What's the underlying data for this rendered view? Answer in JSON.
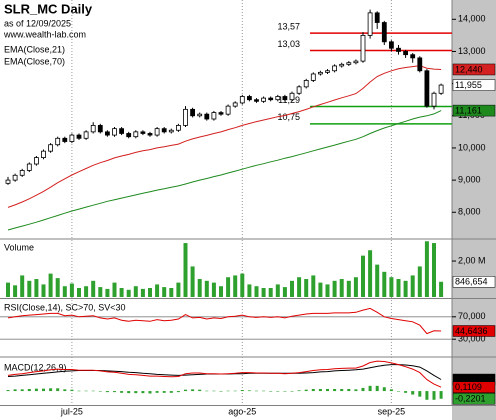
{
  "chart_data": [
    {
      "type": "candlestick",
      "title": "SLR_MC Daily",
      "subtitle": "as of 12/09/2025",
      "source": "www.wealth-lab.com",
      "categories": [
        null,
        null,
        null,
        null,
        null,
        null,
        null,
        null,
        null,
        "jul-25",
        null,
        null,
        null,
        null,
        null,
        null,
        null,
        null,
        null,
        null,
        null,
        null,
        null,
        null,
        null,
        null,
        null,
        null,
        null,
        null,
        null,
        null,
        null,
        "ago-25",
        null,
        null,
        null,
        null,
        null,
        null,
        null,
        null,
        null,
        null,
        null,
        null,
        null,
        null,
        null,
        null,
        null,
        null,
        null,
        null,
        "sep-25",
        null,
        null,
        null,
        null,
        null,
        null,
        null
      ],
      "ohlc": [
        [
          8900,
          9100,
          8850,
          9000
        ],
        [
          9000,
          9200,
          8950,
          9150
        ],
        [
          9150,
          9350,
          9100,
          9300
        ],
        [
          9300,
          9550,
          9250,
          9500
        ],
        [
          9500,
          9750,
          9450,
          9700
        ],
        [
          9700,
          9950,
          9650,
          9900
        ],
        [
          9900,
          10150,
          9850,
          10100
        ],
        [
          10100,
          10350,
          10050,
          10300
        ],
        [
          10300,
          10350,
          10150,
          10200
        ],
        [
          10200,
          10450,
          10150,
          10400
        ],
        [
          10400,
          10450,
          10250,
          10300
        ],
        [
          10300,
          10550,
          10250,
          10500
        ],
        [
          10500,
          10800,
          10450,
          10700
        ],
        [
          10700,
          10750,
          10450,
          10500
        ],
        [
          10500,
          10550,
          10350,
          10400
        ],
        [
          10400,
          10650,
          10350,
          10600
        ],
        [
          10600,
          10650,
          10400,
          10450
        ],
        [
          10450,
          10500,
          10300,
          10350
        ],
        [
          10350,
          10550,
          10300,
          10500
        ],
        [
          10500,
          10550,
          10400,
          10450
        ],
        [
          10450,
          10500,
          10350,
          10400
        ],
        [
          10400,
          10650,
          10350,
          10600
        ],
        [
          10600,
          10650,
          10450,
          10500
        ],
        [
          10500,
          10600,
          10450,
          10550
        ],
        [
          10550,
          10750,
          10500,
          10700
        ],
        [
          10700,
          11300,
          10650,
          11200
        ],
        [
          11200,
          11250,
          10950,
          11000
        ],
        [
          11000,
          11100,
          10950,
          11050
        ],
        [
          11050,
          11100,
          10850,
          10900
        ],
        [
          10900,
          11150,
          10850,
          11100
        ],
        [
          11100,
          11150,
          11000,
          11050
        ],
        [
          11050,
          11350,
          11000,
          11300
        ],
        [
          11300,
          11450,
          11250,
          11400
        ],
        [
          11400,
          11650,
          11350,
          11600
        ],
        [
          11600,
          11650,
          11450,
          11500
        ],
        [
          11500,
          11550,
          11400,
          11450
        ],
        [
          11450,
          11600,
          11400,
          11550
        ],
        [
          11550,
          11600,
          11450,
          11500
        ],
        [
          11500,
          11650,
          11450,
          11600
        ],
        [
          11600,
          11650,
          11450,
          11500
        ],
        [
          11500,
          11750,
          11450,
          11700
        ],
        [
          11700,
          11950,
          11650,
          11900
        ],
        [
          11900,
          12150,
          11850,
          12100
        ],
        [
          12100,
          12350,
          12050,
          12300
        ],
        [
          12300,
          12400,
          12250,
          12350
        ],
        [
          12350,
          12450,
          12300,
          12400
        ],
        [
          12400,
          12600,
          12350,
          12550
        ],
        [
          12550,
          12650,
          12500,
          12600
        ],
        [
          12600,
          12700,
          12550,
          12650
        ],
        [
          12650,
          12750,
          12600,
          12700
        ],
        [
          12700,
          13600,
          12650,
          13500
        ],
        [
          13500,
          14300,
          13400,
          14200
        ],
        [
          14200,
          14250,
          13700,
          13900
        ],
        [
          13900,
          13950,
          13200,
          13300
        ],
        [
          13300,
          13350,
          13000,
          13100
        ],
        [
          13100,
          13200,
          12900,
          13000
        ],
        [
          13000,
          13050,
          12800,
          12900
        ],
        [
          12900,
          12950,
          12650,
          12800
        ],
        [
          12800,
          12850,
          12350,
          12400
        ],
        [
          12400,
          12450,
          11250,
          11300
        ],
        [
          11300,
          11750,
          11200,
          11700
        ],
        [
          11700,
          12000,
          11650,
          11955
        ]
      ],
      "last_label": "11,955",
      "series": [
        {
          "name": "EMA(Close,21)",
          "color": "#d42020",
          "last_label": "12,440",
          "values": [
            8150,
            8230,
            8320,
            8420,
            8530,
            8650,
            8780,
            8920,
            9040,
            9160,
            9260,
            9360,
            9460,
            9540,
            9610,
            9690,
            9750,
            9800,
            9860,
            9910,
            9950,
            10000,
            10040,
            10080,
            10120,
            10210,
            10280,
            10340,
            10390,
            10450,
            10500,
            10570,
            10630,
            10700,
            10760,
            10820,
            10870,
            10920,
            10970,
            11010,
            11070,
            11130,
            11200,
            11280,
            11350,
            11420,
            11490,
            11560,
            11620,
            11690,
            11850,
            12050,
            12220,
            12320,
            12400,
            12460,
            12500,
            12530,
            12560,
            12480,
            12450,
            12440
          ]
        },
        {
          "name": "EMA(Close,70)",
          "color": "#1e8a1e",
          "last_label": "11,161",
          "values": [
            7450,
            7510,
            7570,
            7630,
            7690,
            7760,
            7830,
            7900,
            7970,
            8040,
            8100,
            8160,
            8220,
            8280,
            8340,
            8390,
            8440,
            8490,
            8540,
            8590,
            8640,
            8690,
            8730,
            8780,
            8820,
            8880,
            8940,
            9000,
            9050,
            9110,
            9160,
            9220,
            9280,
            9340,
            9400,
            9460,
            9510,
            9570,
            9620,
            9680,
            9730,
            9790,
            9850,
            9910,
            9970,
            10030,
            10090,
            10150,
            10210,
            10270,
            10350,
            10450,
            10540,
            10620,
            10690,
            10760,
            10830,
            10900,
            10960,
            11000,
            11060,
            11161
          ]
        }
      ],
      "levels": [
        {
          "value": 13570,
          "label": "13,57",
          "color": "#e00000"
        },
        {
          "value": 13030,
          "label": "13,03",
          "color": "#e00000"
        },
        {
          "value": 11290,
          "label": "11,29",
          "color": "#10a010"
        },
        {
          "value": 10750,
          "label": "10,75",
          "color": "#10a010"
        }
      ],
      "ylim": [
        7200,
        14600
      ],
      "yticks": [
        {
          "value": 8000,
          "label": "8,000"
        },
        {
          "value": 9000,
          "label": "9,000"
        },
        {
          "value": 10000,
          "label": "10,000"
        },
        {
          "value": 11000,
          "label": "11,000"
        },
        {
          "value": 12000,
          "label": "12,000"
        },
        {
          "value": 13000,
          "label": "13,000"
        },
        {
          "value": 14000,
          "label": "14,000"
        }
      ],
      "grid": false
    },
    {
      "type": "bar",
      "title": "Volume",
      "color": "#2ea02e",
      "last_label": "846,654",
      "values": [
        800000,
        650000,
        1200000,
        900000,
        1000000,
        700000,
        1300000,
        1050000,
        600000,
        750000,
        500000,
        600000,
        900000,
        550000,
        450000,
        800000,
        500000,
        400000,
        600000,
        450000,
        500000,
        700000,
        550000,
        500000,
        800000,
        3000000,
        1700000,
        1000000,
        900000,
        800000,
        600000,
        1100000,
        1200000,
        1300000,
        700000,
        600000,
        500000,
        500000,
        700000,
        550000,
        900000,
        1100000,
        1000000,
        1200000,
        800000,
        700000,
        900000,
        1000000,
        900000,
        1100000,
        2300000,
        2600000,
        1800000,
        1400000,
        1100000,
        1000000,
        900000,
        1200000,
        1700000,
        3100000,
        3000000,
        846654
      ],
      "ylim": [
        0,
        3170000
      ],
      "yticks": [
        {
          "value": 2000000,
          "label": "2,00 M"
        }
      ],
      "grid": false
    },
    {
      "type": "line",
      "title": "RSI(Close,14), SC>70, SV<30",
      "series": [
        {
          "color": "#e00000",
          "last_label": "44,6436",
          "values": [
            68,
            70,
            72,
            73,
            74,
            75,
            76,
            76,
            72,
            73,
            70,
            71,
            72,
            68,
            66,
            68,
            64,
            62,
            64,
            63,
            62,
            65,
            63,
            64,
            66,
            74,
            68,
            69,
            66,
            68,
            67,
            70,
            71,
            73,
            70,
            69,
            70,
            69,
            70,
            68,
            71,
            73,
            75,
            76,
            76,
            76,
            77,
            77,
            77,
            78,
            82,
            85,
            78,
            70,
            67,
            65,
            63,
            61,
            55,
            40,
            45,
            44.6436
          ]
        }
      ],
      "ylim": [
        0,
        100
      ],
      "yticks": [
        {
          "value": 30,
          "label": "30,000"
        },
        {
          "value": 70,
          "label": "70,000"
        }
      ],
      "grid": true
    },
    {
      "type": "line",
      "title": "MACD(12,26,9)",
      "series": [
        {
          "color": "#2ea02e",
          "style": "bar",
          "last_label": "-0,2201",
          "values": [
            0.03,
            0.05,
            0.05,
            0.06,
            0.07,
            0.07,
            0.08,
            0.08,
            0.05,
            0.04,
            0.01,
            0.01,
            0.01,
            -0.01,
            -0.03,
            -0.03,
            -0.05,
            -0.06,
            -0.06,
            -0.06,
            -0.07,
            -0.05,
            -0.05,
            -0.05,
            -0.03,
            0.04,
            0.05,
            0.04,
            0.01,
            0.01,
            0,
            0.01,
            0.01,
            0.03,
            0.02,
            0.01,
            0.01,
            0,
            0,
            -0.01,
            0,
            0.02,
            0.04,
            0.06,
            0.06,
            0.06,
            0.06,
            0.06,
            0.06,
            0.05,
            0.09,
            0.15,
            0.15,
            0.11,
            0.05,
            0,
            -0.05,
            -0.1,
            -0.16,
            -0.25,
            -0.25,
            -0.2201
          ]
        },
        {
          "color": "#000000",
          "last_label": "0,3311",
          "values": [
            0.42,
            0.43,
            0.45,
            0.47,
            0.49,
            0.51,
            0.53,
            0.55,
            0.57,
            0.58,
            0.59,
            0.59,
            0.59,
            0.59,
            0.58,
            0.57,
            0.56,
            0.54,
            0.53,
            0.51,
            0.5,
            0.48,
            0.47,
            0.46,
            0.45,
            0.46,
            0.47,
            0.48,
            0.49,
            0.49,
            0.49,
            0.49,
            0.5,
            0.5,
            0.51,
            0.51,
            0.51,
            0.51,
            0.51,
            0.51,
            0.51,
            0.51,
            0.52,
            0.53,
            0.55,
            0.56,
            0.58,
            0.59,
            0.6,
            0.61,
            0.63,
            0.67,
            0.71,
            0.74,
            0.76,
            0.76,
            0.75,
            0.73,
            0.69,
            0.58,
            0.45,
            0.3311
          ]
        },
        {
          "color": "#e00000",
          "last_label": "0,1109",
          "values": [
            0.45,
            0.48,
            0.5,
            0.53,
            0.56,
            0.58,
            0.61,
            0.63,
            0.62,
            0.62,
            0.6,
            0.6,
            0.6,
            0.58,
            0.55,
            0.54,
            0.51,
            0.48,
            0.47,
            0.45,
            0.43,
            0.43,
            0.42,
            0.41,
            0.42,
            0.5,
            0.52,
            0.52,
            0.5,
            0.5,
            0.49,
            0.5,
            0.51,
            0.53,
            0.53,
            0.52,
            0.52,
            0.51,
            0.51,
            0.5,
            0.51,
            0.53,
            0.56,
            0.59,
            0.61,
            0.62,
            0.64,
            0.65,
            0.66,
            0.66,
            0.72,
            0.82,
            0.86,
            0.85,
            0.81,
            0.76,
            0.7,
            0.63,
            0.53,
            0.33,
            0.2,
            0.1109
          ]
        }
      ],
      "ylim": [
        -0.4,
        0.95
      ],
      "yticks": [],
      "grid": false
    }
  ]
}
